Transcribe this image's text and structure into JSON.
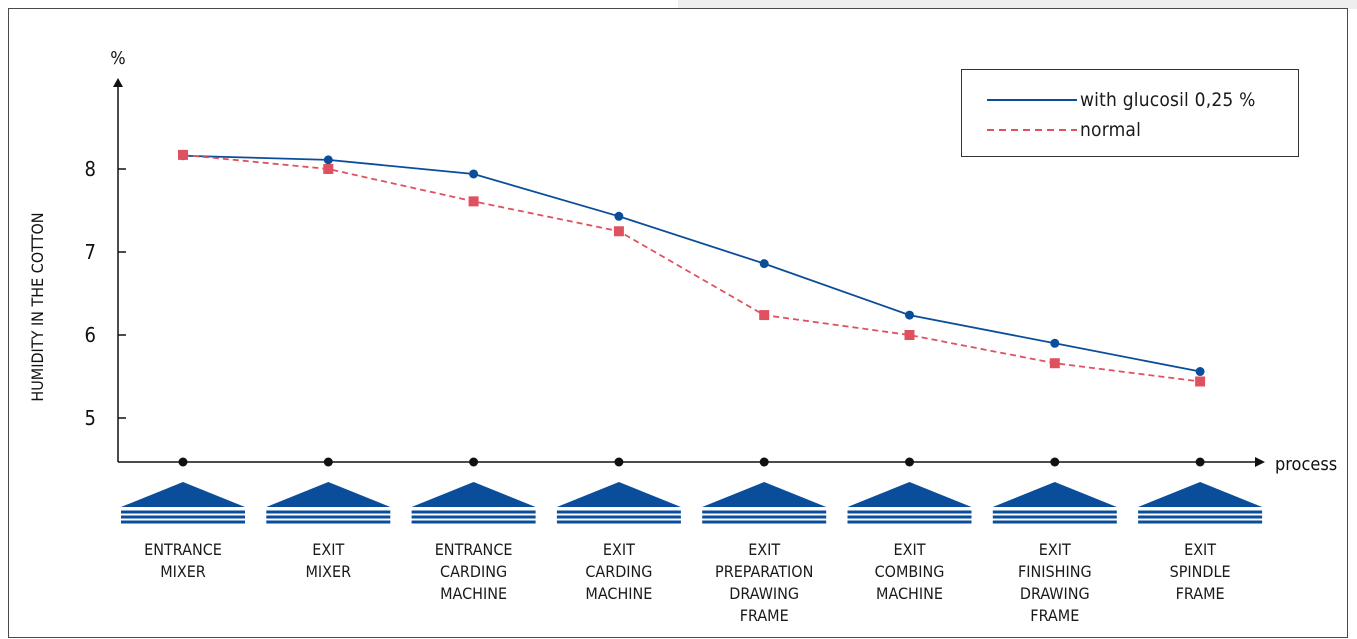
{
  "chart_data": {
    "type": "line",
    "ylabel": "HUMIDITY IN THE COTTON",
    "yunit": "%",
    "xlabel": "process",
    "ylim": [
      5,
      8
    ],
    "yticks": [
      5,
      6,
      7,
      8
    ],
    "grid": false,
    "legend_position": "top-right",
    "categories": [
      [
        "ENTRANCE",
        "MIXER"
      ],
      [
        "EXIT",
        "MIXER"
      ],
      [
        "ENTRANCE",
        "CARDING",
        "MACHINE"
      ],
      [
        "EXIT",
        "CARDING",
        "MACHINE"
      ],
      [
        "EXIT",
        "PREPARATION",
        "DRAWING",
        "FRAME"
      ],
      [
        "EXIT",
        "COMBING",
        "MACHINE"
      ],
      [
        "EXIT",
        "FINISHING",
        "DRAWING",
        "FRAME"
      ],
      [
        "EXIT",
        "SPINDLE",
        "FRAME"
      ]
    ],
    "series": [
      {
        "name": "with glucosil 0,25 %",
        "color": "#0a4e9b",
        "style": "solid",
        "marker": "circle",
        "values": [
          8.16,
          8.11,
          7.94,
          7.43,
          6.86,
          6.24,
          5.9,
          5.56
        ]
      },
      {
        "name": "normal",
        "color": "#e0515f",
        "style": "dashed",
        "marker": "square",
        "values": [
          8.17,
          8.0,
          7.61,
          7.25,
          6.24,
          6.0,
          5.66,
          5.44
        ]
      }
    ]
  }
}
